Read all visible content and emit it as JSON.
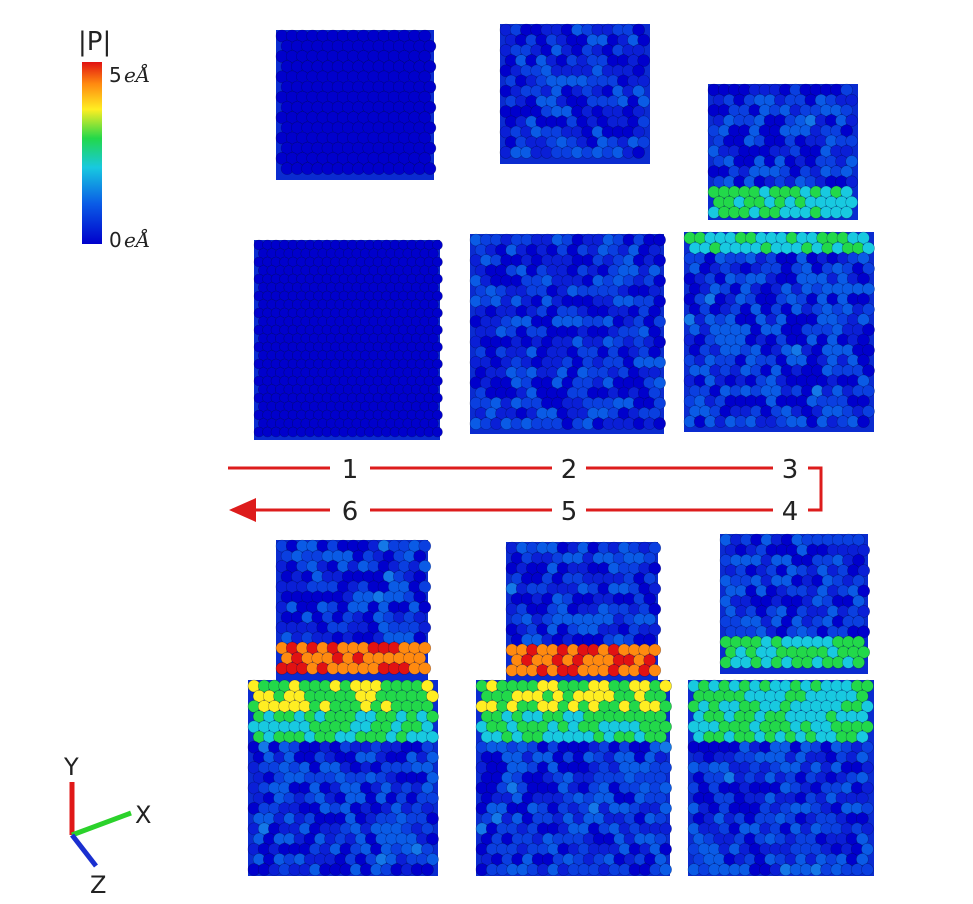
{
  "colorbar": {
    "title": "|P|",
    "max_label": "5",
    "min_label": "0",
    "unit": "eÅ",
    "colors": [
      "#0000cc",
      "#0a5be6",
      "#18c9e0",
      "#22d84a",
      "#ffee22",
      "#ff8a10",
      "#e11212"
    ]
  },
  "steps": [
    {
      "id": "1",
      "label": "1"
    },
    {
      "id": "2",
      "label": "2"
    },
    {
      "id": "3",
      "label": "3"
    },
    {
      "id": "4",
      "label": "4"
    },
    {
      "id": "5",
      "label": "5"
    },
    {
      "id": "6",
      "label": "6"
    }
  ],
  "arrow_color": "#dd1c1c",
  "axes": {
    "y_label": "Y",
    "x_label": "X",
    "z_label": "Z",
    "y_color": "#e01818",
    "x_color": "#2bd22b",
    "z_color": "#1a2fd0"
  }
}
